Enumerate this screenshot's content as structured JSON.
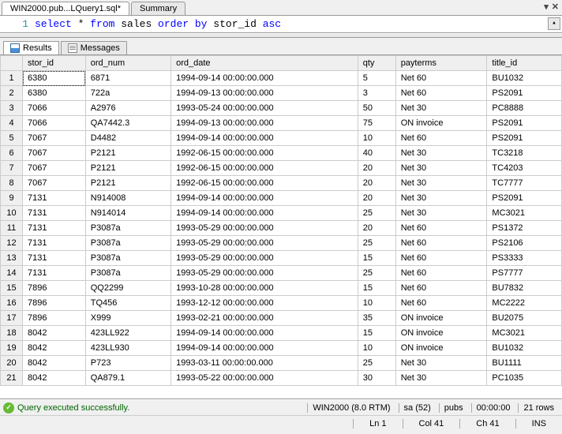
{
  "tabs": {
    "file": "WIN2000.pub...LQuery1.sql*",
    "summary": "Summary"
  },
  "editor": {
    "lineNum": "1",
    "sql_parts": [
      "select",
      " * ",
      "from",
      " sales ",
      "order",
      " ",
      "by",
      " stor_id ",
      "asc"
    ]
  },
  "resultTabs": {
    "results": "Results",
    "messages": "Messages"
  },
  "columns": [
    "stor_id",
    "ord_num",
    "ord_date",
    "qty",
    "payterms",
    "title_id"
  ],
  "rows": [
    [
      "6380",
      "6871",
      "1994-09-14 00:00:00.000",
      "5",
      "Net 60",
      "BU1032"
    ],
    [
      "6380",
      "722a",
      "1994-09-13 00:00:00.000",
      "3",
      "Net 60",
      "PS2091"
    ],
    [
      "7066",
      "A2976",
      "1993-05-24 00:00:00.000",
      "50",
      "Net 30",
      "PC8888"
    ],
    [
      "7066",
      "QA7442.3",
      "1994-09-13 00:00:00.000",
      "75",
      "ON invoice",
      "PS2091"
    ],
    [
      "7067",
      "D4482",
      "1994-09-14 00:00:00.000",
      "10",
      "Net 60",
      "PS2091"
    ],
    [
      "7067",
      "P2121",
      "1992-06-15 00:00:00.000",
      "40",
      "Net 30",
      "TC3218"
    ],
    [
      "7067",
      "P2121",
      "1992-06-15 00:00:00.000",
      "20",
      "Net 30",
      "TC4203"
    ],
    [
      "7067",
      "P2121",
      "1992-06-15 00:00:00.000",
      "20",
      "Net 30",
      "TC7777"
    ],
    [
      "7131",
      "N914008",
      "1994-09-14 00:00:00.000",
      "20",
      "Net 30",
      "PS2091"
    ],
    [
      "7131",
      "N914014",
      "1994-09-14 00:00:00.000",
      "25",
      "Net 30",
      "MC3021"
    ],
    [
      "7131",
      "P3087a",
      "1993-05-29 00:00:00.000",
      "20",
      "Net 60",
      "PS1372"
    ],
    [
      "7131",
      "P3087a",
      "1993-05-29 00:00:00.000",
      "25",
      "Net 60",
      "PS2106"
    ],
    [
      "7131",
      "P3087a",
      "1993-05-29 00:00:00.000",
      "15",
      "Net 60",
      "PS3333"
    ],
    [
      "7131",
      "P3087a",
      "1993-05-29 00:00:00.000",
      "25",
      "Net 60",
      "PS7777"
    ],
    [
      "7896",
      "QQ2299",
      "1993-10-28 00:00:00.000",
      "15",
      "Net 60",
      "BU7832"
    ],
    [
      "7896",
      "TQ456",
      "1993-12-12 00:00:00.000",
      "10",
      "Net 60",
      "MC2222"
    ],
    [
      "7896",
      "X999",
      "1993-02-21 00:00:00.000",
      "35",
      "ON invoice",
      "BU2075"
    ],
    [
      "8042",
      "423LL922",
      "1994-09-14 00:00:00.000",
      "15",
      "ON invoice",
      "MC3021"
    ],
    [
      "8042",
      "423LL930",
      "1994-09-14 00:00:00.000",
      "10",
      "ON invoice",
      "BU1032"
    ],
    [
      "8042",
      "P723",
      "1993-03-11 00:00:00.000",
      "25",
      "Net 30",
      "BU1111"
    ],
    [
      "8042",
      "QA879.1",
      "1993-05-22 00:00:00.000",
      "30",
      "Net 30",
      "PC1035"
    ]
  ],
  "status": {
    "message": "Query executed successfully.",
    "server": "WIN2000 (8.0 RTM)",
    "user": "sa (52)",
    "db": "pubs",
    "time": "00:00:00",
    "rows": "21 rows"
  },
  "status2": {
    "ln": "Ln 1",
    "col": "Col 41",
    "ch": "Ch 41",
    "ins": "INS"
  }
}
